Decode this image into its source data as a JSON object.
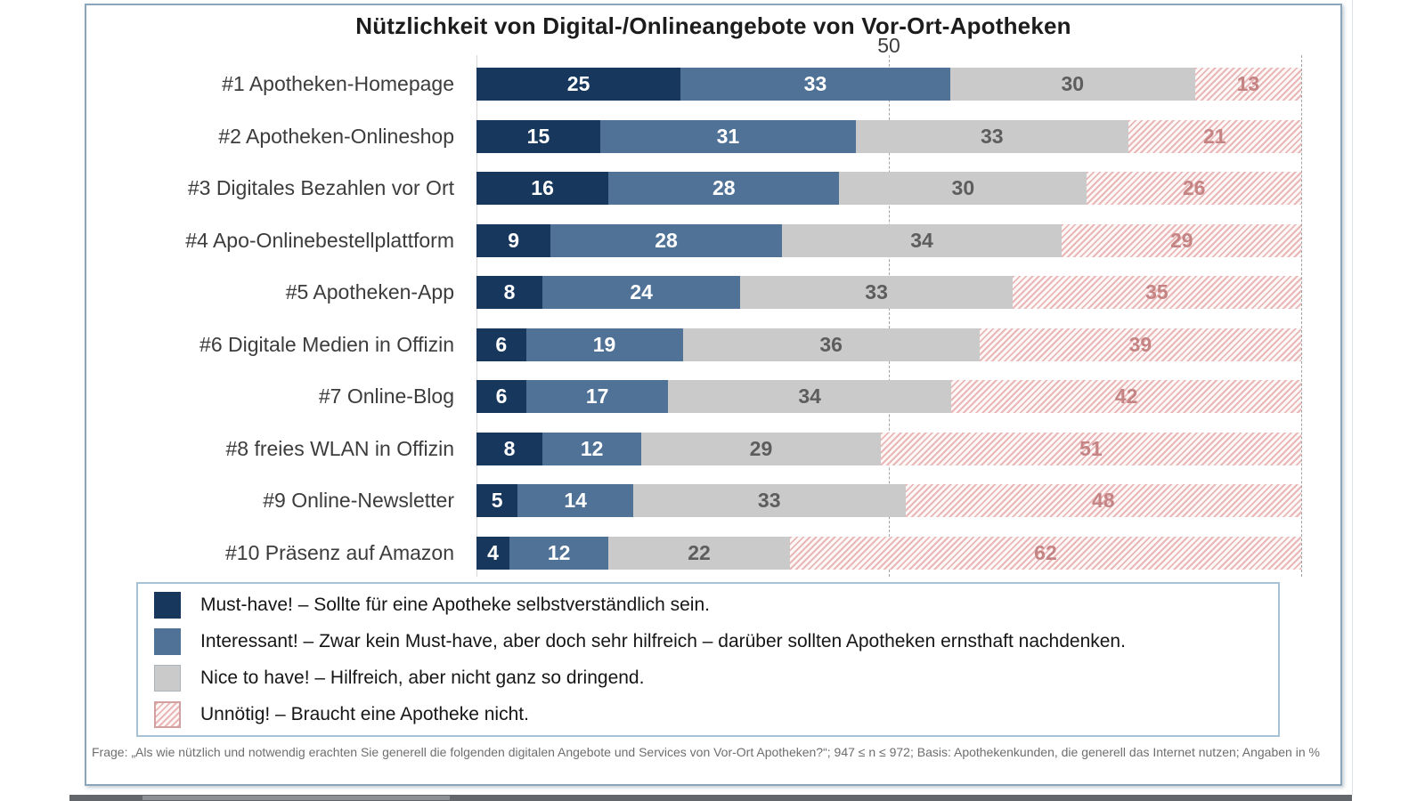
{
  "title": "Nützlichkeit von Digital-/Onlineangebote von Vor-Ort-Apotheken",
  "gridline_label": "50",
  "chart_data": {
    "type": "bar",
    "orientation": "horizontal",
    "stacked": true,
    "unit": "%",
    "xlim": [
      0,
      100
    ],
    "gridlines": [
      50,
      100
    ],
    "grid_style": "dashed-vertical",
    "legend_position": "bottom",
    "categories": [
      "#1 Apotheken-Homepage",
      "#2 Apotheken-Onlineshop",
      "#3 Digitales Bezahlen vor Ort",
      "#4 Apo-Onlinebestellplattform",
      "#5 Apotheken-App",
      "#6 Digitale Medien in Offizin",
      "#7 Online-Blog",
      "#8 freies WLAN in Offizin",
      "#9 Online-Newsletter",
      "#10 Präsenz auf Amazon"
    ],
    "series": [
      {
        "name": "Must-have!",
        "color": "#17375d",
        "pattern": "solid",
        "label_color": "#ffffff",
        "values": [
          25,
          15,
          16,
          9,
          8,
          6,
          6,
          8,
          5,
          4
        ]
      },
      {
        "name": "Interessant!",
        "color": "#4f7296",
        "pattern": "solid",
        "label_color": "#ffffff",
        "values": [
          33,
          31,
          28,
          28,
          24,
          19,
          17,
          12,
          14,
          12
        ]
      },
      {
        "name": "Nice to have!",
        "color": "#cacaca",
        "pattern": "solid",
        "label_color": "#5d5d5d",
        "values": [
          30,
          33,
          30,
          34,
          33,
          36,
          34,
          29,
          33,
          22
        ]
      },
      {
        "name": "Unnötig!",
        "color": "#e9b7b7",
        "pattern": "hatch",
        "hatch_background": "#fdf8f8",
        "label_color": "#c58484",
        "values": [
          13,
          21,
          26,
          29,
          35,
          39,
          42,
          51,
          48,
          62
        ]
      }
    ]
  },
  "legend": {
    "items": [
      {
        "label": "Must-have! – Sollte für eine Apotheke selbstverständlich sein.",
        "swatch": "solid-navy"
      },
      {
        "label": "Interessant! – Zwar kein Must-have, aber doch sehr hilfreich – darüber sollten Apotheken ernsthaft nachdenken.",
        "swatch": "solid-blue"
      },
      {
        "label": "Nice to have! – Hilfreich, aber nicht ganz so dringend.",
        "swatch": "solid-gray"
      },
      {
        "label": "Unnötig! – Braucht eine Apotheke nicht.",
        "swatch": "hatched-rose"
      }
    ]
  },
  "footnote": "Frage: „Als wie nützlich und notwendig erachten Sie generell die folgenden digitalen Angebote und Services von Vor-Ort Apotheken?“; 947 ≤ n ≤ 972; Basis: Apothekenkunden, die generell das Internet nutzen; Angaben in %",
  "colors": {
    "frame_border": "#8ba6ba",
    "legend_border": "#a6c2d4",
    "gridline": "#a2a2a2",
    "category_label": "#3c3c3c",
    "title_text": "#1c1c1c",
    "footnote_text": "#6e6e6e",
    "taskbar_strip": "#63666a"
  }
}
